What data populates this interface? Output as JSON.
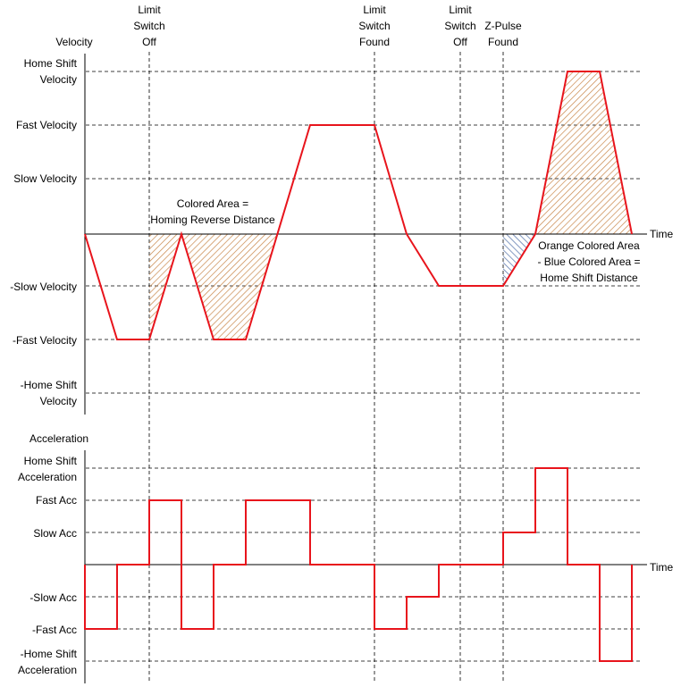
{
  "events": {
    "limit_switch_off_1": [
      "Limit",
      "Switch",
      "Off"
    ],
    "limit_switch_found": [
      "Limit",
      "Switch",
      "Found"
    ],
    "limit_switch_off_2": [
      "Limit",
      "Switch",
      "Off"
    ],
    "z_pulse_found": [
      "Z-Pulse",
      "Found"
    ]
  },
  "velocity": {
    "axis_title": "Velocity",
    "time_label": "Time",
    "levels": {
      "home_shift": [
        "Home Shift",
        "Velocity"
      ],
      "fast": "Fast Velocity",
      "slow": "Slow Velocity",
      "neg_slow": "-Slow Velocity",
      "neg_fast": "-Fast Velocity",
      "neg_home_shift": [
        "-Home Shift",
        "Velocity"
      ]
    },
    "annotation_reverse": [
      "Colored Area =",
      "Homing Reverse Distance"
    ],
    "annotation_shift": [
      "Orange Colored Area",
      "- Blue Colored Area =",
      "Home Shift Distance"
    ]
  },
  "acceleration": {
    "axis_title": "Acceleration",
    "time_label": "Time",
    "levels": {
      "home_shift": [
        "Home Shift",
        "Acceleration"
      ],
      "fast": "Fast Acc",
      "slow": "Slow Acc",
      "neg_slow": "-Slow Acc",
      "neg_fast": "-Fast Acc",
      "neg_home_shift": [
        "-Home Shift",
        "Acceleration"
      ]
    }
  },
  "colors": {
    "curve": "#e8141c",
    "orange_hatch": "#c8874a",
    "blue_hatch": "#4f6fa8",
    "grid": "#000000"
  }
}
